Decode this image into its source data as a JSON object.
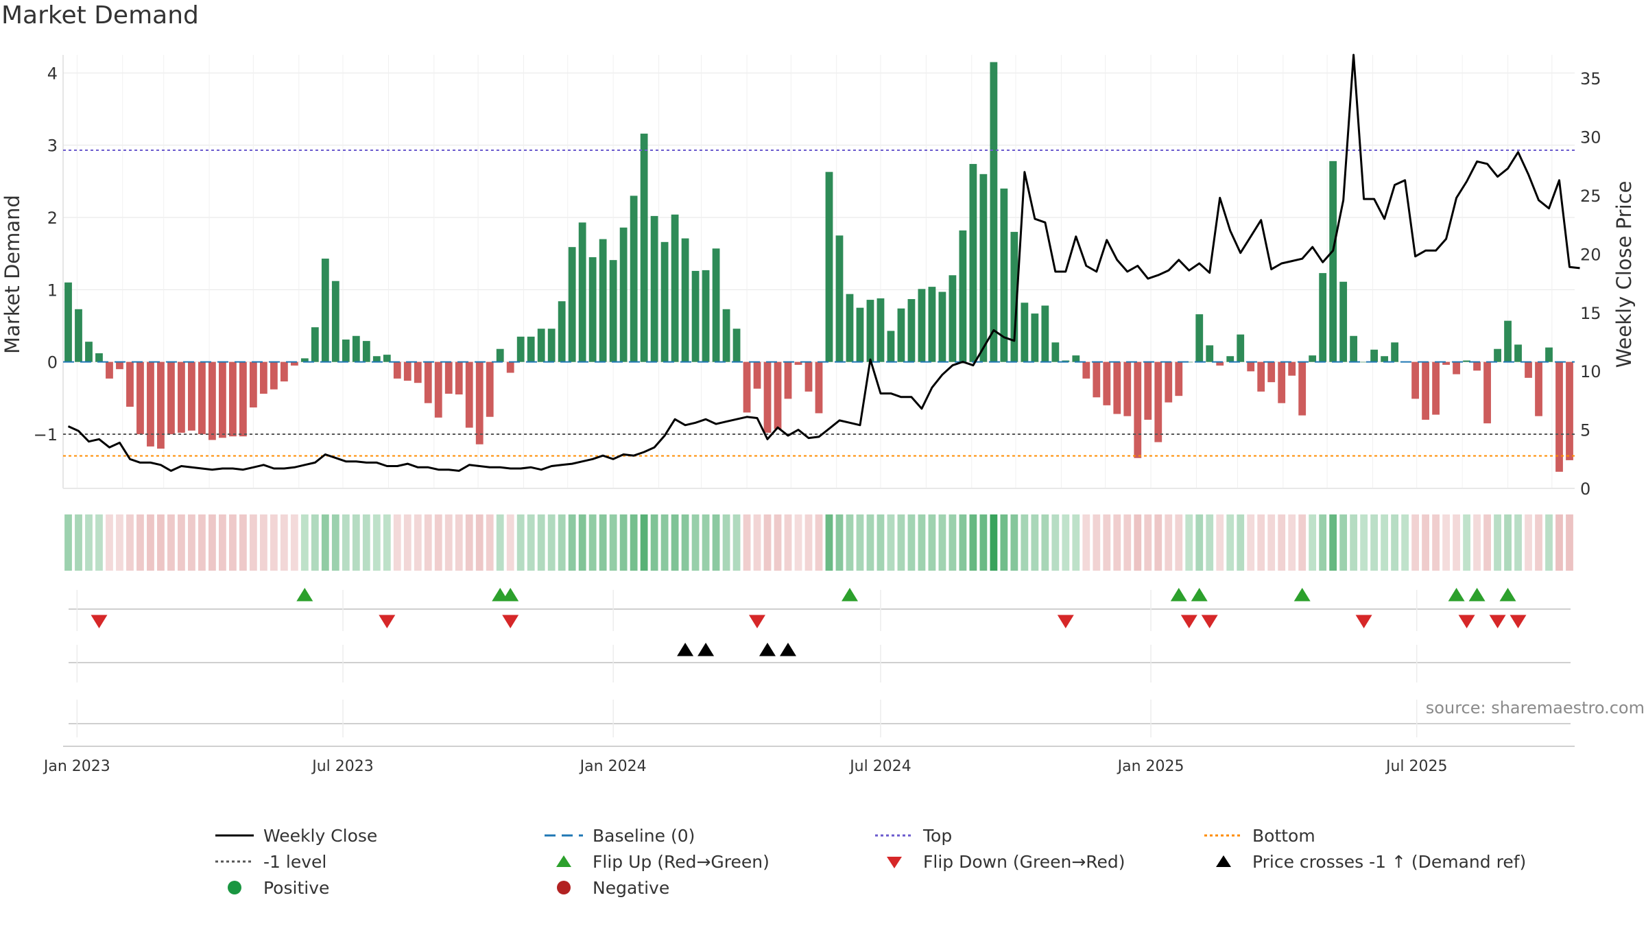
{
  "title": "Market Demand",
  "source": "source: sharemaestro.com",
  "colors": {
    "positive": "#2e8b57",
    "negative": "#cd5c5c",
    "price": "#000000",
    "baseline": "#1f77b4",
    "top": "#6a5acd",
    "bottom": "#ff8c00",
    "minus1": "#555555",
    "flip_up": "#2ca02c",
    "flip_down": "#d62728",
    "cross": "#000000"
  },
  "legend": [
    {
      "label": "Weekly Close",
      "icon": "solid-line"
    },
    {
      "label": "Baseline (0)",
      "icon": "dash-line"
    },
    {
      "label": "Top",
      "icon": "dot-line-purple"
    },
    {
      "label": "Bottom",
      "icon": "dot-line-orange"
    },
    {
      "label": "-1 level",
      "icon": "dot-line-gray"
    },
    {
      "label": "Flip Up (Red→Green)",
      "icon": "triangle-up-green"
    },
    {
      "label": "Flip Down (Green→Red)",
      "icon": "triangle-down-red"
    },
    {
      "label": "Price crosses -1 ↑ (Demand ref)",
      "icon": "triangle-up-black"
    },
    {
      "label": "Positive",
      "icon": "circle-green"
    },
    {
      "label": "Negative",
      "icon": "circle-red"
    }
  ],
  "chart_data": {
    "type": "bar",
    "start_date": "2022-12-26",
    "x_axis": {
      "ticks": [
        "Jan 2023",
        "Jul 2023",
        "Jan 2024",
        "Jul 2024",
        "Jan 2025",
        "Jul 2025"
      ]
    },
    "ylabel": "Market Demand",
    "y2label": "Weekly Close Price",
    "yticks": [
      "4",
      "3",
      "2",
      "1",
      "0",
      "−1"
    ],
    "y2ticks": [
      "35",
      "30",
      "25",
      "20",
      "15",
      "10",
      "5",
      "0"
    ],
    "ylim": [
      -1.75,
      4.25
    ],
    "y2lim": [
      0,
      37
    ],
    "grid": true,
    "top_level": 2.93,
    "bottom_level": -1.3,
    "minus1_level": -1,
    "series": [
      {
        "name": "Market Demand",
        "values": [
          1.1,
          0.73,
          0.28,
          0.12,
          -0.23,
          -0.1,
          -0.62,
          -1.0,
          -1.17,
          -1.2,
          -1.0,
          -0.98,
          -0.95,
          -1.0,
          -1.08,
          -1.05,
          -1.03,
          -1.03,
          -0.63,
          -0.44,
          -0.38,
          -0.27,
          -0.05,
          0.05,
          0.48,
          1.43,
          1.12,
          0.31,
          0.36,
          0.29,
          0.08,
          0.1,
          -0.23,
          -0.26,
          -0.29,
          -0.57,
          -0.77,
          -0.44,
          -0.45,
          -0.91,
          -1.14,
          -0.76,
          0.18,
          -0.15,
          0.35,
          0.35,
          0.46,
          0.46,
          0.84,
          1.59,
          1.93,
          1.45,
          1.7,
          1.41,
          1.86,
          2.3,
          3.16,
          2.02,
          1.66,
          2.04,
          1.71,
          1.26,
          1.27,
          1.57,
          0.73,
          0.46,
          -0.7,
          -0.37,
          -0.98,
          -0.93,
          -0.51,
          -0.04,
          -0.41,
          -0.71,
          2.63,
          1.75,
          0.94,
          0.75,
          0.86,
          0.88,
          0.43,
          0.74,
          0.87,
          1.01,
          1.04,
          0.97,
          1.2,
          1.82,
          2.74,
          2.6,
          4.15,
          2.4,
          1.8,
          0.82,
          0.67,
          0.78,
          0.27,
          0.02,
          0.09,
          -0.23,
          -0.49,
          -0.6,
          -0.72,
          -0.75,
          -1.33,
          -0.8,
          -1.11,
          -0.56,
          -0.47,
          0.0,
          0.66,
          0.23,
          -0.05,
          0.08,
          0.38,
          -0.13,
          -0.41,
          -0.28,
          -0.57,
          -0.19,
          -0.74,
          0.09,
          1.23,
          2.78,
          1.11,
          0.36,
          0.0,
          0.17,
          0.08,
          0.27,
          0.0,
          -0.51,
          -0.8,
          -0.73,
          -0.04,
          -0.17,
          0.02,
          -0.12,
          -0.85,
          0.18,
          0.57,
          0.24,
          -0.22,
          -0.75,
          0.2,
          -1.52,
          -1.36
        ]
      },
      {
        "name": "Weekly Close",
        "axis": "right",
        "values": [
          5.3,
          4.9,
          4.0,
          4.2,
          3.5,
          3.9,
          2.5,
          2.2,
          2.2,
          2.0,
          1.5,
          1.9,
          1.8,
          1.7,
          1.6,
          1.7,
          1.7,
          1.6,
          1.8,
          2.0,
          1.7,
          1.7,
          1.8,
          2.0,
          2.2,
          2.9,
          2.6,
          2.3,
          2.3,
          2.2,
          2.2,
          1.9,
          1.9,
          2.1,
          1.8,
          1.8,
          1.6,
          1.6,
          1.5,
          2.0,
          1.9,
          1.8,
          1.8,
          1.7,
          1.7,
          1.8,
          1.6,
          1.9,
          2.0,
          2.1,
          2.3,
          2.5,
          2.8,
          2.5,
          2.9,
          2.8,
          3.1,
          3.5,
          4.5,
          5.9,
          5.4,
          5.6,
          5.9,
          5.5,
          5.7,
          5.9,
          6.1,
          6.0,
          4.2,
          5.2,
          4.5,
          5.0,
          4.3,
          4.4,
          5.1,
          5.8,
          5.6,
          5.4,
          11.0,
          8.1,
          8.1,
          7.8,
          7.8,
          6.8,
          8.6,
          9.7,
          10.5,
          10.8,
          10.5,
          12.0,
          13.5,
          12.9,
          12.6,
          27.0,
          23.0,
          22.7,
          18.5,
          18.5,
          21.5,
          19.0,
          18.5,
          21.2,
          19.5,
          18.5,
          19.0,
          17.9,
          18.2,
          18.6,
          19.5,
          18.6,
          19.2,
          18.4,
          24.8,
          22.0,
          20.1,
          21.5,
          22.9,
          18.7,
          19.2,
          19.4,
          19.6,
          20.6,
          19.3,
          20.3,
          24.6,
          37.0,
          24.7,
          24.7,
          23.0,
          25.9,
          26.3,
          19.8,
          20.3,
          20.3,
          21.3,
          24.8,
          26.2,
          27.9,
          27.7,
          26.6,
          27.3,
          28.7,
          26.8,
          24.6,
          23.9,
          26.3,
          18.9,
          18.8
        ]
      }
    ],
    "flip_up": [
      "2023-06-05",
      "2023-10-16",
      "2023-10-23",
      "2024-06-10",
      "2025-01-20",
      "2025-02-03",
      "2025-04-14",
      "2025-07-28",
      "2025-08-11",
      "2025-09-01"
    ],
    "flip_down": [
      "2023-01-16",
      "2023-07-31",
      "2023-10-23",
      "2024-04-08",
      "2024-11-04",
      "2025-01-27",
      "2025-02-10",
      "2025-05-26",
      "2025-08-04",
      "2025-08-25",
      "2025-09-08"
    ],
    "price_cross_minus1": [
      "2024-02-19",
      "2024-03-04",
      "2024-04-15",
      "2024-04-29"
    ]
  }
}
